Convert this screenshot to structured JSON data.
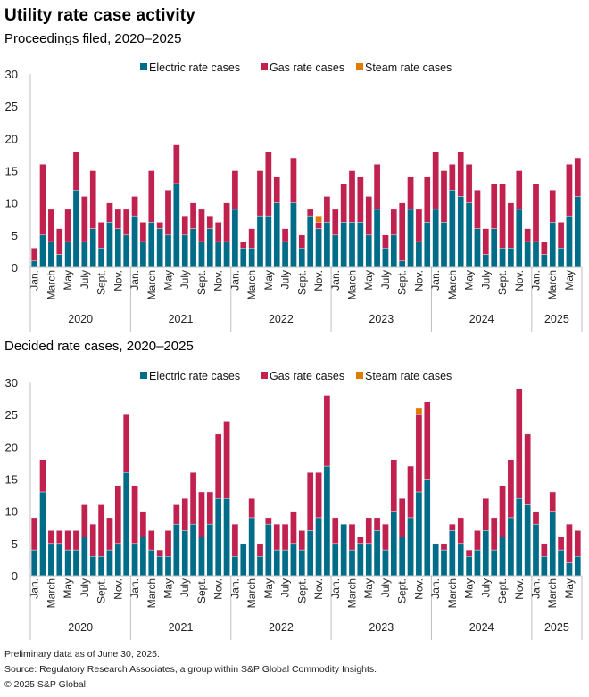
{
  "title": "Utility rate case activity",
  "footer": {
    "note": "Preliminary data as of June 30, 2025.",
    "source": "Source: Regulatory Research Associates, a group within S&P Global Commodity Insights.",
    "copyright": "© 2025 S&P Global."
  },
  "colors": {
    "electric": "#006c87",
    "gas": "#c0214f",
    "steam": "#e07b00",
    "axis": "#bfbfbf"
  },
  "chart_data": [
    {
      "type": "bar",
      "stacked": true,
      "title": "Proceedings filed, 2020–2025",
      "xlabel": "",
      "ylabel": "",
      "ylim": [
        0,
        30
      ],
      "yticks": [
        0,
        5,
        10,
        15,
        20,
        25,
        30
      ],
      "grid": false,
      "legend": {
        "placement": "top-center",
        "entries": [
          "Electric rate cases",
          "Gas rate cases",
          "Steam rate cases"
        ]
      },
      "years": [
        "2020",
        "2021",
        "2022",
        "2023",
        "2024",
        "2025"
      ],
      "month_tick_labels": [
        "Jan.",
        "March",
        "May",
        "July",
        "Sept.",
        "Nov."
      ],
      "months_per_year": [
        12,
        12,
        12,
        12,
        12,
        6
      ],
      "categories": [
        "2020-01",
        "2020-02",
        "2020-03",
        "2020-04",
        "2020-05",
        "2020-06",
        "2020-07",
        "2020-08",
        "2020-09",
        "2020-10",
        "2020-11",
        "2020-12",
        "2021-01",
        "2021-02",
        "2021-03",
        "2021-04",
        "2021-05",
        "2021-06",
        "2021-07",
        "2021-08",
        "2021-09",
        "2021-10",
        "2021-11",
        "2021-12",
        "2022-01",
        "2022-02",
        "2022-03",
        "2022-04",
        "2022-05",
        "2022-06",
        "2022-07",
        "2022-08",
        "2022-09",
        "2022-10",
        "2022-11",
        "2022-12",
        "2023-01",
        "2023-02",
        "2023-03",
        "2023-04",
        "2023-05",
        "2023-06",
        "2023-07",
        "2023-08",
        "2023-09",
        "2023-10",
        "2023-11",
        "2023-12",
        "2024-01",
        "2024-02",
        "2024-03",
        "2024-04",
        "2024-05",
        "2024-06",
        "2024-07",
        "2024-08",
        "2024-09",
        "2024-10",
        "2024-11",
        "2024-12",
        "2025-01",
        "2025-02",
        "2025-03",
        "2025-04",
        "2025-05",
        "2025-06"
      ],
      "series": [
        {
          "name": "Electric rate cases",
          "values": [
            1,
            5,
            4,
            2,
            4,
            12,
            4,
            6,
            3,
            7,
            6,
            5,
            8,
            4,
            7,
            6,
            5,
            13,
            5,
            6,
            4,
            6,
            4,
            4,
            9,
            3,
            3,
            8,
            8,
            10,
            4,
            10,
            3,
            8,
            6,
            7,
            5,
            7,
            7,
            7,
            5,
            9,
            3,
            5,
            1,
            9,
            4,
            7,
            9,
            7,
            12,
            11,
            10,
            6,
            2,
            6,
            3,
            3,
            9,
            4,
            4,
            2,
            7,
            3,
            8,
            11
          ]
        },
        {
          "name": "Gas rate cases",
          "values": [
            2,
            11,
            5,
            4,
            5,
            6,
            7,
            9,
            4,
            3,
            3,
            4,
            3,
            3,
            8,
            1,
            7,
            6,
            3,
            4,
            5,
            2,
            3,
            6,
            6,
            1,
            3,
            7,
            10,
            4,
            2,
            7,
            2,
            1,
            1,
            4,
            4,
            6,
            8,
            7,
            6,
            7,
            2,
            4,
            9,
            5,
            5,
            7,
            9,
            8,
            4,
            7,
            6,
            6,
            4,
            7,
            10,
            7,
            6,
            2,
            9,
            2,
            5,
            4,
            8,
            6
          ]
        },
        {
          "name": "Steam rate cases",
          "values": [
            0,
            0,
            0,
            0,
            0,
            0,
            0,
            0,
            0,
            0,
            0,
            0,
            0,
            0,
            0,
            0,
            0,
            0,
            0,
            0,
            0,
            0,
            0,
            0,
            0,
            0,
            0,
            0,
            0,
            0,
            0,
            0,
            0,
            0,
            1,
            0,
            0,
            0,
            0,
            0,
            0,
            0,
            0,
            0,
            0,
            0,
            0,
            0,
            0,
            0,
            0,
            0,
            0,
            0,
            0,
            0,
            0,
            0,
            0,
            0,
            0,
            0,
            0,
            0,
            0,
            0
          ]
        }
      ]
    },
    {
      "type": "bar",
      "stacked": true,
      "title": "Decided rate cases, 2020–2025",
      "xlabel": "",
      "ylabel": "",
      "ylim": [
        0,
        30
      ],
      "yticks": [
        0,
        5,
        10,
        15,
        20,
        25,
        30
      ],
      "grid": false,
      "legend": {
        "placement": "top-center",
        "entries": [
          "Electric rate cases",
          "Gas rate cases",
          "Steam rate cases"
        ]
      },
      "years": [
        "2020",
        "2021",
        "2022",
        "2023",
        "2024",
        "2025"
      ],
      "month_tick_labels": [
        "Jan.",
        "March",
        "May",
        "July",
        "Sept.",
        "Nov."
      ],
      "months_per_year": [
        12,
        12,
        12,
        12,
        12,
        6
      ],
      "categories": [
        "2020-01",
        "2020-02",
        "2020-03",
        "2020-04",
        "2020-05",
        "2020-06",
        "2020-07",
        "2020-08",
        "2020-09",
        "2020-10",
        "2020-11",
        "2020-12",
        "2021-01",
        "2021-02",
        "2021-03",
        "2021-04",
        "2021-05",
        "2021-06",
        "2021-07",
        "2021-08",
        "2021-09",
        "2021-10",
        "2021-11",
        "2021-12",
        "2022-01",
        "2022-02",
        "2022-03",
        "2022-04",
        "2022-05",
        "2022-06",
        "2022-07",
        "2022-08",
        "2022-09",
        "2022-10",
        "2022-11",
        "2022-12",
        "2023-01",
        "2023-02",
        "2023-03",
        "2023-04",
        "2023-05",
        "2023-06",
        "2023-07",
        "2023-08",
        "2023-09",
        "2023-10",
        "2023-11",
        "2023-12",
        "2024-01",
        "2024-02",
        "2024-03",
        "2024-04",
        "2024-05",
        "2024-06",
        "2024-07",
        "2024-08",
        "2024-09",
        "2024-10",
        "2024-11",
        "2024-12",
        "2025-01",
        "2025-02",
        "2025-03",
        "2025-04",
        "2025-05",
        "2025-06"
      ],
      "series": [
        {
          "name": "Electric rate cases",
          "values": [
            4,
            13,
            5,
            5,
            4,
            4,
            6,
            3,
            3,
            4,
            5,
            16,
            5,
            6,
            4,
            3,
            3,
            8,
            7,
            8,
            6,
            8,
            12,
            12,
            3,
            5,
            9,
            3,
            8,
            4,
            4,
            5,
            4,
            7,
            9,
            17,
            5,
            8,
            4,
            5,
            5,
            7,
            4,
            10,
            6,
            9,
            13,
            15,
            5,
            4,
            7,
            5,
            3,
            4,
            7,
            4,
            6,
            9,
            12,
            11,
            8,
            3,
            10,
            4,
            2,
            3
          ]
        },
        {
          "name": "Gas rate cases",
          "values": [
            5,
            5,
            2,
            2,
            3,
            3,
            5,
            5,
            8,
            5,
            9,
            9,
            9,
            4,
            3,
            1,
            4,
            3,
            5,
            8,
            7,
            5,
            10,
            12,
            5,
            0,
            3,
            2,
            1,
            4,
            4,
            5,
            3,
            9,
            7,
            11,
            4,
            0,
            4,
            1,
            4,
            2,
            4,
            8,
            6,
            8,
            12,
            12,
            0,
            1,
            1,
            4,
            1,
            3,
            5,
            5,
            8,
            9,
            17,
            11,
            2,
            2,
            3,
            2,
            6,
            4
          ]
        },
        {
          "name": "Steam rate cases",
          "values": [
            0,
            0,
            0,
            0,
            0,
            0,
            0,
            0,
            0,
            0,
            0,
            0,
            0,
            0,
            0,
            0,
            0,
            0,
            0,
            0,
            0,
            0,
            0,
            0,
            0,
            0,
            0,
            0,
            0,
            0,
            0,
            0,
            0,
            0,
            0,
            0,
            0,
            0,
            0,
            0,
            0,
            0,
            0,
            0,
            0,
            0,
            1,
            0,
            0,
            0,
            0,
            0,
            0,
            0,
            0,
            0,
            0,
            0,
            0,
            0,
            0,
            0,
            0,
            0,
            0,
            0
          ]
        }
      ]
    }
  ]
}
